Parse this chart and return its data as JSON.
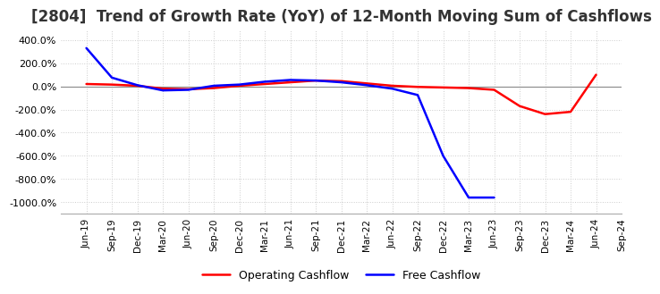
{
  "title": "[2804]  Trend of Growth Rate (YoY) of 12-Month Moving Sum of Cashflows",
  "title_fontsize": 12,
  "ylim": [
    -1100,
    480
  ],
  "yticks": [
    400,
    200,
    0,
    -200,
    -400,
    -600,
    -800,
    -1000
  ],
  "background_color": "#ffffff",
  "grid_color": "#cccccc",
  "legend_labels": [
    "Operating Cashflow",
    "Free Cashflow"
  ],
  "legend_colors": [
    "red",
    "blue"
  ],
  "x_labels": [
    "Jun-19",
    "Sep-19",
    "Dec-19",
    "Mar-20",
    "Jun-20",
    "Sep-20",
    "Dec-20",
    "Mar-21",
    "Jun-21",
    "Sep-21",
    "Dec-21",
    "Mar-22",
    "Jun-22",
    "Sep-22",
    "Dec-22",
    "Mar-23",
    "Jun-23",
    "Sep-23",
    "Dec-23",
    "Mar-24",
    "Jun-24",
    "Sep-24"
  ],
  "operating_cashflow": [
    20,
    15,
    5,
    -20,
    -25,
    -15,
    5,
    20,
    35,
    50,
    45,
    25,
    5,
    -5,
    -10,
    -15,
    -30,
    -170,
    -240,
    -220,
    100,
    null
  ],
  "free_cashflow": [
    330,
    75,
    10,
    -35,
    -30,
    5,
    15,
    40,
    55,
    50,
    35,
    10,
    -20,
    -75,
    -600,
    -960,
    -960,
    null,
    null,
    null,
    null,
    null
  ]
}
